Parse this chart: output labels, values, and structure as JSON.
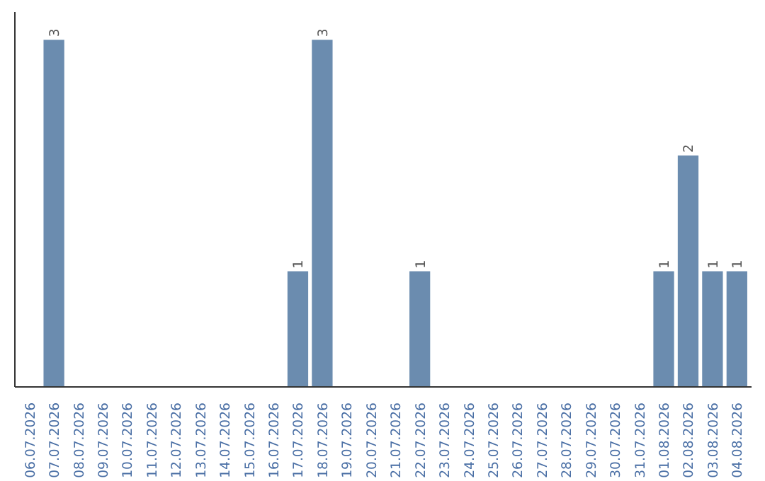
{
  "chart_data": {
    "type": "bar",
    "categories": [
      "06.07.2026",
      "07.07.2026",
      "08.07.2026",
      "09.07.2026",
      "10.07.2026",
      "11.07.2026",
      "12.07.2026",
      "13.07.2026",
      "14.07.2026",
      "15.07.2026",
      "16.07.2026",
      "17.07.2026",
      "18.07.2026",
      "19.07.2026",
      "20.07.2026",
      "21.07.2026",
      "22.07.2026",
      "23.07.2026",
      "24.07.2026",
      "25.07.2026",
      "26.07.2026",
      "27.07.2026",
      "28.07.2026",
      "29.07.2026",
      "30.07.2026",
      "31.07.2026",
      "01.08.2026",
      "02.08.2026",
      "03.08.2026",
      "04.08.2026"
    ],
    "values": [
      0,
      3,
      0,
      0,
      0,
      0,
      0,
      0,
      0,
      0,
      0,
      1,
      3,
      0,
      0,
      0,
      1,
      0,
      0,
      0,
      0,
      0,
      0,
      0,
      0,
      0,
      1,
      2,
      1,
      1
    ],
    "value_labels": [
      null,
      "3",
      null,
      null,
      null,
      null,
      null,
      null,
      null,
      null,
      null,
      "1",
      "3",
      null,
      null,
      null,
      "1",
      null,
      null,
      null,
      null,
      null,
      null,
      null,
      null,
      null,
      "1",
      "2",
      "1",
      "1"
    ],
    "color": "#6b8caf",
    "grid": false
  }
}
